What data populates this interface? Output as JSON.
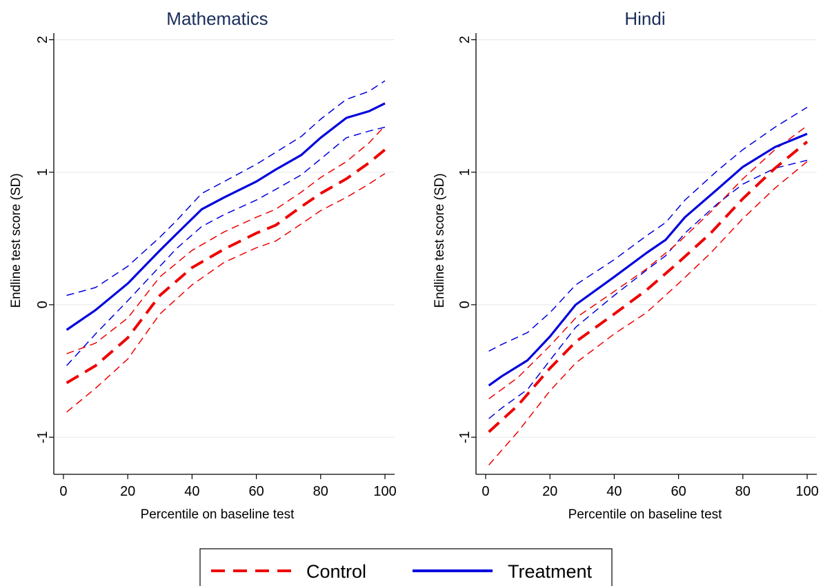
{
  "chart_data": [
    {
      "type": "line",
      "title": "Mathematics",
      "xlabel": "Percentile on baseline test",
      "ylabel": "Endline test score (SD)",
      "xlim": [
        -3,
        103
      ],
      "ylim": [
        -1.28,
        2.05
      ],
      "xticks": [
        0,
        20,
        40,
        60,
        80,
        100
      ],
      "yticks": [
        -1,
        0,
        1,
        2
      ],
      "grid": "horizontal",
      "series": [
        {
          "name": "Treatment",
          "color": "#0000dd",
          "style": "solid",
          "x": [
            1,
            10,
            20,
            30,
            35,
            43,
            50,
            60,
            66,
            74,
            80,
            88,
            95,
            100
          ],
          "y": [
            -0.19,
            -0.04,
            0.16,
            0.41,
            0.53,
            0.72,
            0.81,
            0.93,
            1.02,
            1.13,
            1.26,
            1.41,
            1.46,
            1.52
          ]
        },
        {
          "name": "Treatment 95% CI upper",
          "color": "#0000dd",
          "style": "dashed",
          "x": [
            1,
            10,
            20,
            30,
            35,
            43,
            50,
            60,
            66,
            74,
            80,
            88,
            95,
            100
          ],
          "y": [
            0.07,
            0.13,
            0.29,
            0.51,
            0.63,
            0.84,
            0.93,
            1.06,
            1.15,
            1.27,
            1.4,
            1.55,
            1.61,
            1.69
          ]
        },
        {
          "name": "Treatment 95% CI lower",
          "color": "#0000dd",
          "style": "dashed",
          "x": [
            1,
            10,
            20,
            30,
            35,
            43,
            50,
            60,
            66,
            74,
            80,
            88,
            95,
            100
          ],
          "y": [
            -0.46,
            -0.22,
            0.03,
            0.29,
            0.42,
            0.59,
            0.68,
            0.79,
            0.87,
            0.98,
            1.1,
            1.26,
            1.31,
            1.34
          ]
        },
        {
          "name": "Control",
          "color": "#ee0000",
          "style": "dashed",
          "x": [
            1,
            10,
            20,
            30,
            40,
            50,
            60,
            66,
            74,
            80,
            88,
            95,
            100
          ],
          "y": [
            -0.59,
            -0.46,
            -0.25,
            0.07,
            0.28,
            0.42,
            0.54,
            0.6,
            0.74,
            0.84,
            0.95,
            1.07,
            1.17
          ]
        },
        {
          "name": "Control 95% CI upper",
          "color": "#ee0000",
          "style": "dashed",
          "x": [
            1,
            10,
            20,
            30,
            40,
            50,
            60,
            66,
            74,
            80,
            88,
            95,
            100
          ],
          "y": [
            -0.37,
            -0.29,
            -0.1,
            0.21,
            0.41,
            0.55,
            0.66,
            0.72,
            0.85,
            0.96,
            1.08,
            1.22,
            1.35
          ]
        },
        {
          "name": "Control 95% CI lower",
          "color": "#ee0000",
          "style": "dashed",
          "x": [
            1,
            10,
            20,
            30,
            40,
            50,
            60,
            66,
            74,
            80,
            88,
            95,
            100
          ],
          "y": [
            -0.81,
            -0.63,
            -0.41,
            -0.07,
            0.15,
            0.32,
            0.43,
            0.48,
            0.61,
            0.71,
            0.81,
            0.91,
            0.99
          ]
        }
      ]
    },
    {
      "type": "line",
      "title": "Hindi",
      "xlabel": "Percentile on baseline test",
      "ylabel": "Endline test score (SD)",
      "xlim": [
        -3,
        103
      ],
      "ylim": [
        -1.28,
        2.05
      ],
      "xticks": [
        0,
        20,
        40,
        60,
        80,
        100
      ],
      "yticks": [
        -1,
        0,
        1,
        2
      ],
      "grid": "horizontal",
      "series": [
        {
          "name": "Treatment",
          "color": "#0000dd",
          "style": "solid",
          "x": [
            1,
            5,
            13,
            20,
            28,
            40,
            50,
            56,
            62,
            72,
            80,
            90,
            100
          ],
          "y": [
            -0.61,
            -0.54,
            -0.42,
            -0.24,
            0.0,
            0.21,
            0.39,
            0.49,
            0.66,
            0.87,
            1.04,
            1.19,
            1.29
          ]
        },
        {
          "name": "Treatment 95% CI upper",
          "color": "#0000dd",
          "style": "dashed",
          "x": [
            1,
            5,
            13,
            20,
            28,
            40,
            50,
            56,
            62,
            72,
            80,
            90,
            100
          ],
          "y": [
            -0.35,
            -0.3,
            -0.21,
            -0.06,
            0.15,
            0.34,
            0.52,
            0.62,
            0.79,
            1.01,
            1.17,
            1.34,
            1.49
          ]
        },
        {
          "name": "Treatment 95% CI lower",
          "color": "#0000dd",
          "style": "dashed",
          "x": [
            1,
            5,
            13,
            20,
            28,
            40,
            50,
            56,
            62,
            72,
            80,
            90,
            100
          ],
          "y": [
            -0.86,
            -0.78,
            -0.64,
            -0.42,
            -0.17,
            0.07,
            0.26,
            0.37,
            0.54,
            0.76,
            0.91,
            1.03,
            1.09
          ]
        },
        {
          "name": "Control",
          "color": "#ee0000",
          "style": "dashed",
          "x": [
            1,
            10,
            20,
            28,
            40,
            50,
            60,
            70,
            80,
            90,
            100
          ],
          "y": [
            -0.96,
            -0.76,
            -0.48,
            -0.28,
            -0.07,
            0.11,
            0.32,
            0.54,
            0.8,
            1.03,
            1.23
          ]
        },
        {
          "name": "Control 95% CI upper",
          "color": "#ee0000",
          "style": "dashed",
          "x": [
            1,
            10,
            20,
            28,
            40,
            50,
            60,
            70,
            80,
            90,
            100
          ],
          "y": [
            -0.71,
            -0.55,
            -0.31,
            -0.1,
            0.1,
            0.27,
            0.47,
            0.7,
            0.95,
            1.17,
            1.35
          ]
        },
        {
          "name": "Control 95% CI lower",
          "color": "#ee0000",
          "style": "dashed",
          "x": [
            1,
            10,
            20,
            28,
            40,
            50,
            60,
            70,
            80,
            90,
            100
          ],
          "y": [
            -1.21,
            -0.96,
            -0.65,
            -0.44,
            -0.22,
            -0.06,
            0.16,
            0.39,
            0.65,
            0.88,
            1.08
          ]
        }
      ]
    }
  ],
  "legend": {
    "placement": "bottom-center",
    "items": [
      {
        "label": "Control",
        "color": "#ee0000",
        "style": "dashed"
      },
      {
        "label": "Treatment",
        "color": "#0000dd",
        "style": "solid"
      }
    ]
  }
}
